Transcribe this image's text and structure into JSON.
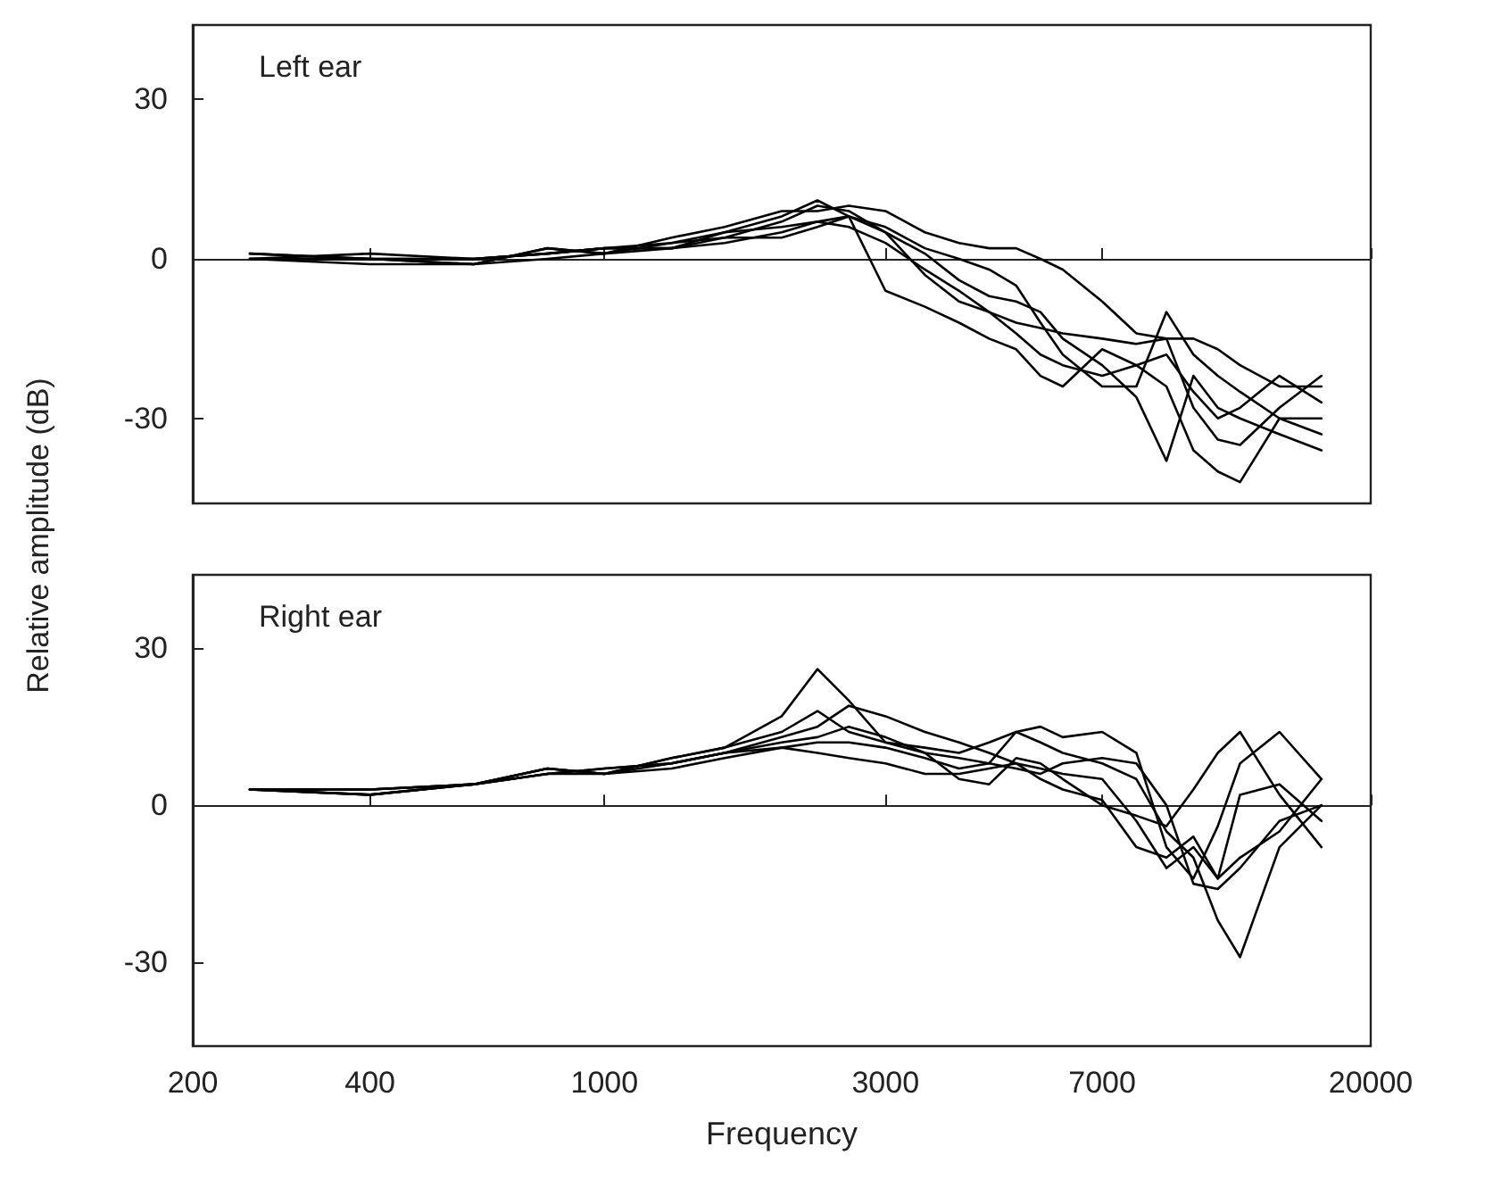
{
  "chart_data": [
    {
      "type": "line",
      "title": "Left ear",
      "ylabel": "Relative amplitude (dB)",
      "log": "x",
      "marker": "none",
      "line_style": "solid",
      "tick_labels": "y",
      "x": [
        250,
        400,
        600,
        800,
        1000,
        1300,
        1600,
        2000,
        2300,
        2600,
        3000,
        3500,
        4000,
        4500,
        5000,
        5500,
        6000,
        7000,
        8000,
        9000,
        10000,
        11000,
        12000,
        14000,
        16500
      ],
      "xlim": [
        200,
        20000
      ],
      "xticks": [
        200,
        400,
        1000,
        3000,
        7000,
        20000
      ],
      "ylim": [
        -46,
        44
      ],
      "yticks": [
        -30,
        0,
        30
      ],
      "series": [
        {
          "color": "#000000",
          "values": [
            0,
            0,
            -1,
            2,
            1,
            3,
            4,
            7,
            10,
            9,
            5,
            -3,
            -8,
            -10,
            -14,
            -18,
            -20,
            -22,
            -20,
            -24,
            -36,
            -40,
            -42,
            -30,
            -33
          ]
        },
        {
          "color": "#000000",
          "values": [
            1,
            0,
            0,
            1,
            2,
            2,
            5,
            8,
            11,
            8,
            -6,
            -9,
            -12,
            -15,
            -17,
            -22,
            -24,
            -17,
            -20,
            -18,
            -25,
            -30,
            -28,
            -22,
            -27
          ]
        },
        {
          "color": "#000000",
          "values": [
            0,
            -1,
            -1,
            2,
            1,
            4,
            6,
            9,
            9,
            10,
            9,
            5,
            3,
            2,
            2,
            0,
            -2,
            -8,
            -14,
            -15,
            -15,
            -17,
            -20,
            -24,
            -24
          ]
        },
        {
          "color": "#000000",
          "values": [
            1,
            0,
            0,
            1,
            2,
            2,
            4,
            4,
            6,
            8,
            5,
            1,
            -4,
            -7,
            -8,
            -10,
            -15,
            -20,
            -26,
            -38,
            -22,
            -28,
            -30,
            -33,
            -36
          ]
        },
        {
          "color": "#000000",
          "values": [
            0,
            0,
            -1,
            0,
            1,
            2,
            3,
            5,
            7,
            8,
            6,
            2,
            0,
            -2,
            -5,
            -12,
            -18,
            -24,
            -24,
            -10,
            -18,
            -22,
            -25,
            -30,
            -30
          ]
        },
        {
          "color": "#000000",
          "values": [
            0,
            1,
            0,
            1,
            2,
            3,
            5,
            6,
            7,
            6,
            3,
            -2,
            -6,
            -10,
            -12,
            -13,
            -14,
            -15,
            -16,
            -15,
            -28,
            -34,
            -35,
            -28,
            -22
          ]
        }
      ]
    },
    {
      "type": "line",
      "title": "Right ear",
      "xlabel": "Frequency",
      "log": "x",
      "marker": "none",
      "line_style": "solid",
      "x": [
        250,
        400,
        600,
        800,
        1000,
        1300,
        1600,
        2000,
        2300,
        2600,
        3000,
        3500,
        4000,
        4500,
        5000,
        5500,
        6000,
        7000,
        8000,
        9000,
        10000,
        11000,
        12000,
        14000,
        16500
      ],
      "xlim": [
        200,
        20000
      ],
      "xticks": [
        200,
        400,
        1000,
        3000,
        7000,
        20000
      ],
      "ylim": [
        -46,
        44
      ],
      "yticks": [
        -30,
        0,
        30
      ],
      "series": [
        {
          "color": "#000000",
          "values": [
            3,
            3,
            4,
            7,
            6,
            9,
            11,
            17,
            26,
            20,
            12,
            11,
            10,
            12,
            14,
            12,
            10,
            8,
            5,
            -5,
            -10,
            -22,
            -29,
            -8,
            0
          ]
        },
        {
          "color": "#000000",
          "values": [
            3,
            2,
            4,
            6,
            7,
            8,
            10,
            13,
            15,
            19,
            17,
            14,
            12,
            10,
            8,
            7,
            6,
            5,
            -3,
            -12,
            -8,
            -14,
            -10,
            -5,
            5
          ]
        },
        {
          "color": "#000000",
          "values": [
            3,
            3,
            4,
            7,
            6,
            9,
            11,
            14,
            18,
            14,
            12,
            10,
            9,
            8,
            14,
            15,
            13,
            14,
            10,
            -8,
            -14,
            -4,
            8,
            14,
            5
          ]
        },
        {
          "color": "#000000",
          "values": [
            3,
            2,
            4,
            6,
            6,
            8,
            10,
            12,
            13,
            15,
            13,
            10,
            5,
            4,
            9,
            8,
            5,
            0,
            -2,
            -4,
            3,
            10,
            14,
            2,
            -8
          ]
        },
        {
          "color": "#000000",
          "values": [
            3,
            3,
            4,
            6,
            7,
            8,
            10,
            11,
            12,
            12,
            11,
            9,
            7,
            8,
            7,
            6,
            8,
            9,
            8,
            0,
            -15,
            -16,
            -12,
            -3,
            0
          ]
        },
        {
          "color": "#000000",
          "values": [
            3,
            2,
            4,
            7,
            6,
            7,
            9,
            11,
            10,
            9,
            8,
            6,
            6,
            7,
            8,
            5,
            3,
            1,
            -8,
            -10,
            -6,
            -14,
            2,
            4,
            -3
          ]
        }
      ]
    }
  ]
}
